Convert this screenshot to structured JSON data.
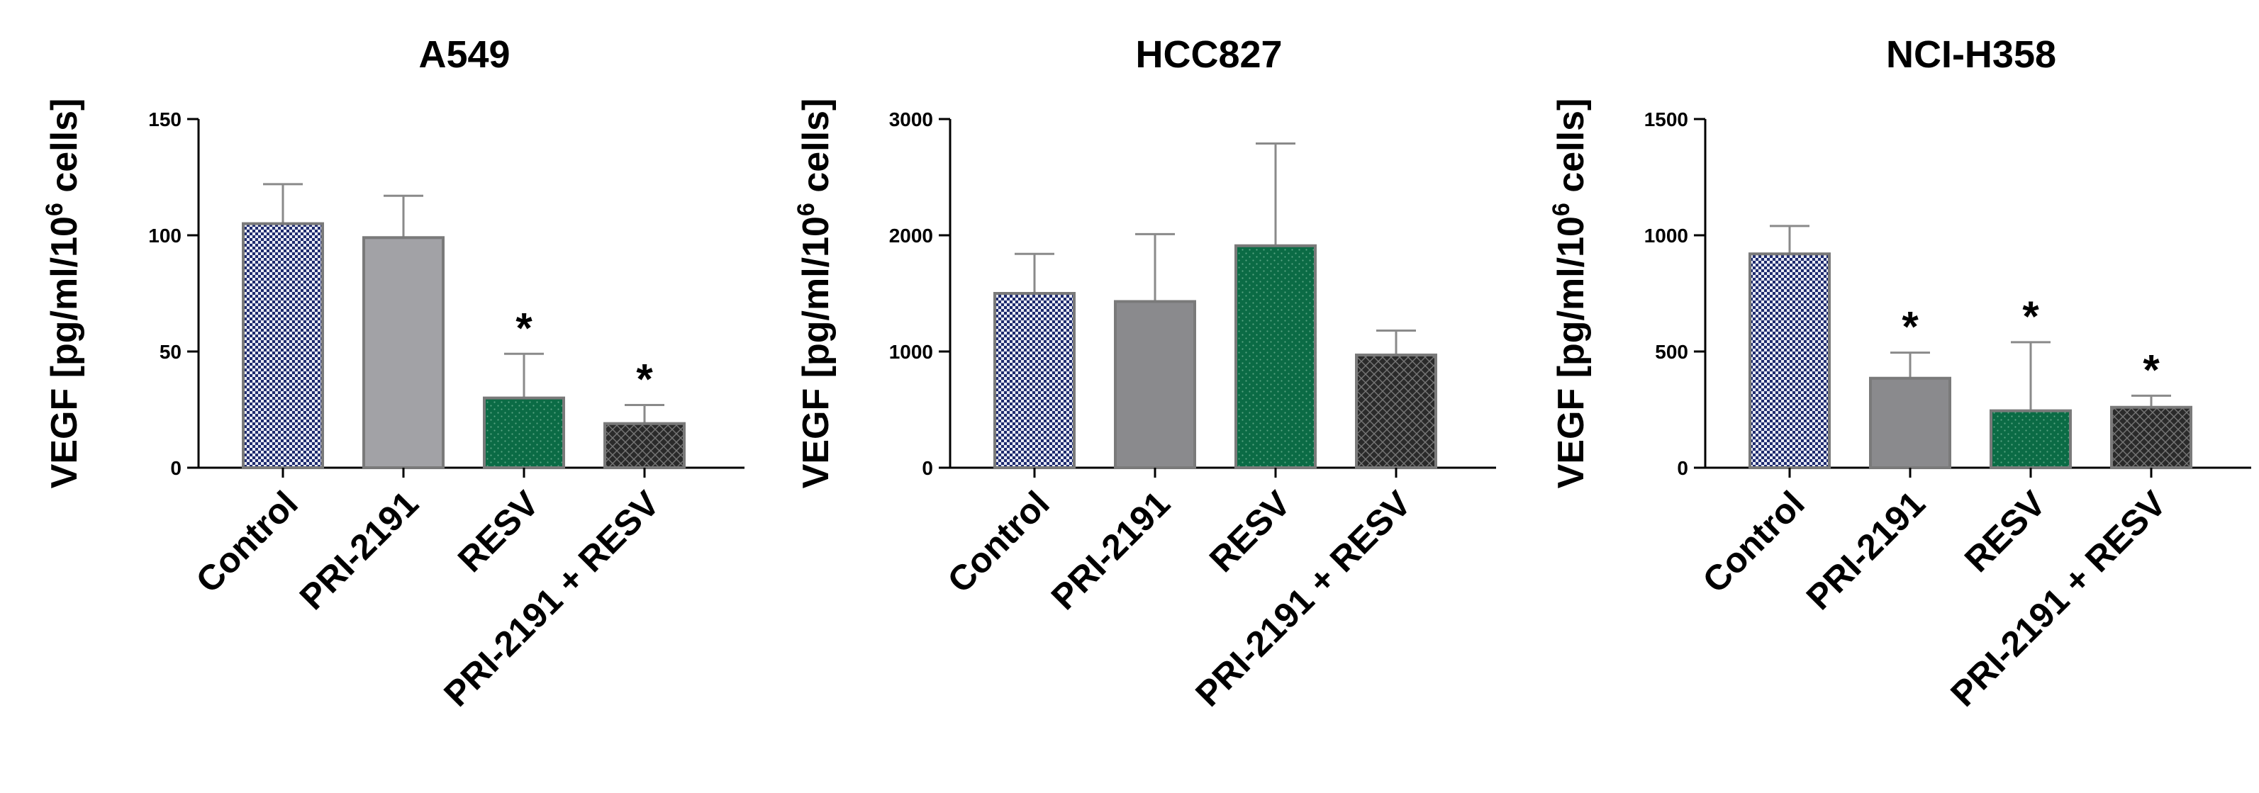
{
  "chart_data": [
    {
      "type": "bar",
      "title": "A549",
      "ylabel": "VEGF [pg/ml/10",
      "ylabel_sup": "6",
      "ylabel_tail": " cells]",
      "ylim": [
        0,
        150
      ],
      "yticks": [
        0,
        50,
        100,
        150
      ],
      "categories": [
        "Control",
        "PRI-2191",
        "RESV",
        "PRI-2191 + RESV"
      ],
      "values": [
        105,
        99,
        30,
        19
      ],
      "errors": [
        17,
        18,
        19,
        8
      ],
      "significance": [
        "",
        "",
        "*",
        "*"
      ],
      "fills": [
        "pat-blue",
        "#a2a2a6",
        "pat-green",
        "pat-dark"
      ]
    },
    {
      "type": "bar",
      "title": "HCC827",
      "ylabel": "VEGF [pg/ml/10",
      "ylabel_sup": "6",
      "ylabel_tail": " cells]",
      "ylim": [
        0,
        3000
      ],
      "yticks": [
        0,
        1000,
        2000,
        3000
      ],
      "categories": [
        "Control",
        "PRI-2191",
        "RESV",
        "PRI-2191 + RESV"
      ],
      "values": [
        1500,
        1430,
        1910,
        970
      ],
      "errors": [
        340,
        580,
        880,
        210
      ],
      "significance": [
        "",
        "",
        "",
        ""
      ],
      "fills": [
        "pat-blue",
        "#8a8a8d",
        "pat-green",
        "pat-dark"
      ]
    },
    {
      "type": "bar",
      "title": "NCI-H358",
      "ylabel": "VEGF [pg/ml/10",
      "ylabel_sup": "6",
      "ylabel_tail": " cells]",
      "ylim": [
        0,
        1500
      ],
      "yticks": [
        0,
        500,
        1000,
        1500
      ],
      "categories": [
        "Control",
        "PRI-2191",
        "RESV",
        "PRI-2191 + RESV"
      ],
      "values": [
        920,
        385,
        245,
        260
      ],
      "errors": [
        120,
        110,
        295,
        50
      ],
      "significance": [
        "",
        "*",
        "*",
        "*"
      ],
      "fills": [
        "pat-blue",
        "#8a8a8d",
        "pat-green",
        "pat-dark"
      ]
    }
  ],
  "colors": {
    "blue_pattern": "#1e2b6e",
    "green_pattern": "#0b6b45",
    "dark_pattern": "#2a2a2a",
    "bar_edge": "#7a7a7a",
    "error_bar": "#8a8a8a"
  }
}
